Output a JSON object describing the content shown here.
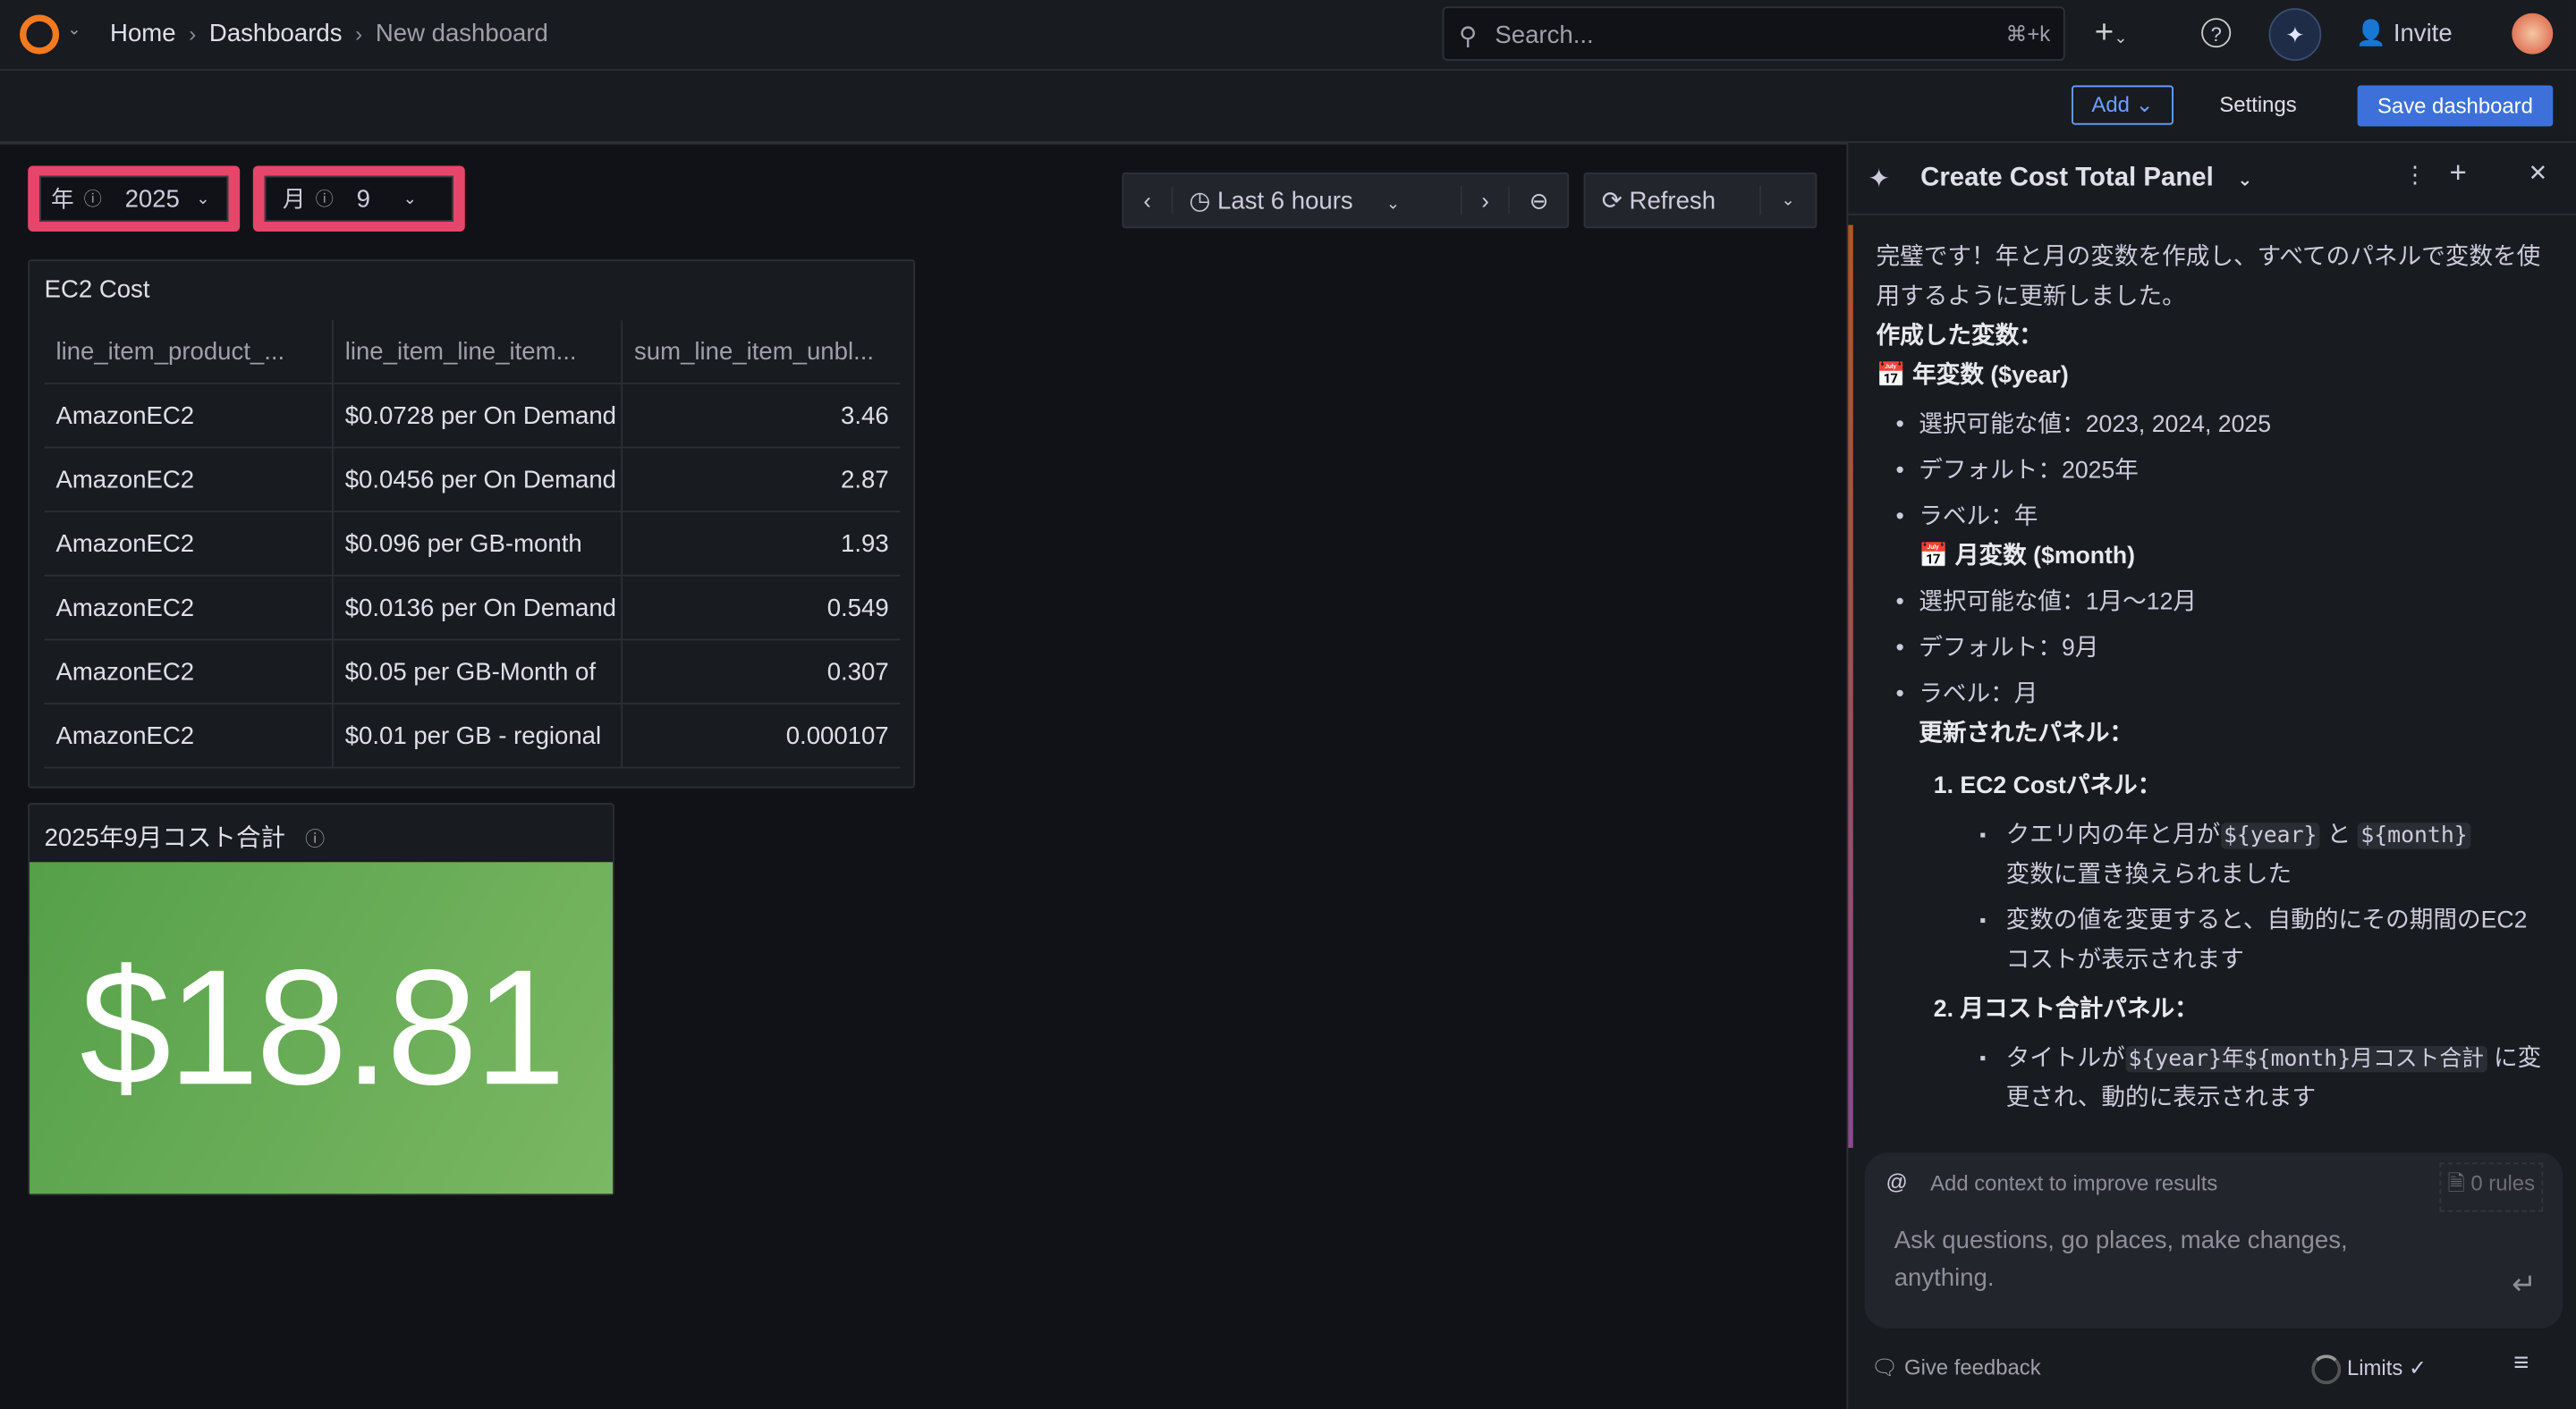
{
  "nav": {
    "breadcrumbs": [
      "Home",
      "Dashboards",
      "New dashboard"
    ],
    "search_placeholder": "Search...",
    "search_shortcut": "⌘+k",
    "invite": "Invite"
  },
  "toolbar": {
    "add": "Add",
    "settings": "Settings",
    "save": "Save dashboard"
  },
  "variables": [
    {
      "label": "年",
      "value": "2025"
    },
    {
      "label": "月",
      "value": "9"
    }
  ],
  "time": {
    "range": "Last 6 hours",
    "refresh": "Refresh"
  },
  "table_panel": {
    "title": "EC2 Cost",
    "columns": [
      "line_item_product_...",
      "line_item_line_item...",
      "sum_line_item_unbl..."
    ],
    "rows": [
      [
        "AmazonEC2",
        "$0.0728 per On Demand",
        "3.46"
      ],
      [
        "AmazonEC2",
        "$0.0456 per On Demand",
        "2.87"
      ],
      [
        "AmazonEC2",
        "$0.096 per GB-month",
        "1.93"
      ],
      [
        "AmazonEC2",
        "$0.0136 per On Demand",
        "0.549"
      ],
      [
        "AmazonEC2",
        "$0.05 per GB-Month of",
        "0.307"
      ],
      [
        "AmazonEC2",
        "$0.01 per GB - regional",
        "0.000107"
      ]
    ]
  },
  "stat_panel": {
    "title": "2025年9月コスト合計",
    "value": "$18.81",
    "color": "#5fa552"
  },
  "assistant": {
    "title": "Create Cost Total Panel",
    "intro": "完璧です！年と月の変数を作成し、すべてのパネルで変数を使用するように更新しました。",
    "created_heading": "作成した変数：",
    "year_heading": "年変数 ($year)",
    "year_items": [
      "選択可能な値：2023, 2024, 2025",
      "デフォルト：2025年",
      "ラベル：年"
    ],
    "month_heading": "月変数 ($month)",
    "month_items": [
      "選択可能な値：1月〜12月",
      "デフォルト：9月",
      "ラベル：月"
    ],
    "updated_heading": "更新されたパネル：",
    "p1_title": "1. EC2 Costパネル：",
    "p1_a_pre": "クエリ内の年と月が",
    "p1_a_code1": "${year}",
    "p1_a_mid": "と",
    "p1_a_code2": "${month}",
    "p1_a_post": "変数に置き換えられました",
    "p1_b": "変数の値を変更すると、自動的にその期間のEC2コストが表示されます",
    "p2_title": "2. 月コスト合計パネル：",
    "p2_a_pre": "タイトルが",
    "p2_a_code": "${year}年${month}月コスト合計",
    "p2_a_post": "に変更され、動的に表示されます",
    "context": "Add context to improve results",
    "rules": "0 rules",
    "input_placeholder": "Ask questions, go places, make changes, anything.",
    "feedback": "Give feedback",
    "limits": "Limits"
  }
}
